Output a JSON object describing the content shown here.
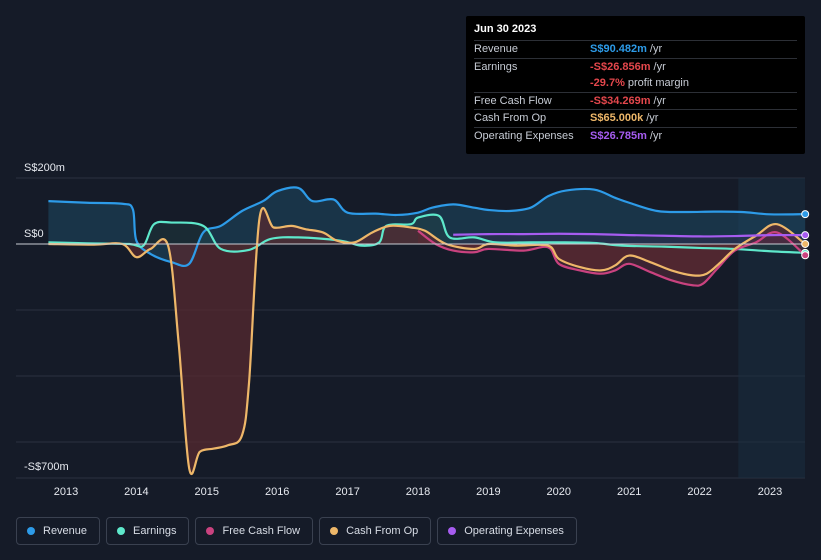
{
  "chart_data": {
    "type": "line",
    "title": "",
    "y_unit": "S$",
    "ylim": [
      -700,
      200
    ],
    "y_tick_labels": [
      {
        "value": 200,
        "label": "S$200m"
      },
      {
        "value": 0,
        "label": "S$0"
      },
      {
        "value": -700,
        "label": "-S$700m"
      }
    ],
    "x_tick_labels": [
      "2013",
      "2014",
      "2015",
      "2016",
      "2017",
      "2018",
      "2019",
      "2020",
      "2021",
      "2022",
      "2023"
    ],
    "forecast_start": 2022.55,
    "series": [
      {
        "name": "Revenue",
        "color": "#2d9be8",
        "points": [
          [
            2012.75,
            130
          ],
          [
            2013.3,
            125
          ],
          [
            2013.8,
            122
          ],
          [
            2013.95,
            105
          ],
          [
            2014.0,
            10
          ],
          [
            2014.2,
            -30
          ],
          [
            2014.5,
            -55
          ],
          [
            2014.75,
            -60
          ],
          [
            2014.95,
            35
          ],
          [
            2015.2,
            55
          ],
          [
            2015.5,
            100
          ],
          [
            2015.8,
            130
          ],
          [
            2016.0,
            160
          ],
          [
            2016.3,
            170
          ],
          [
            2016.5,
            130
          ],
          [
            2016.8,
            135
          ],
          [
            2017.0,
            95
          ],
          [
            2017.4,
            92
          ],
          [
            2017.7,
            88
          ],
          [
            2018.0,
            95
          ],
          [
            2018.2,
            110
          ],
          [
            2018.5,
            120
          ],
          [
            2018.8,
            110
          ],
          [
            2019.0,
            103
          ],
          [
            2019.3,
            100
          ],
          [
            2019.6,
            110
          ],
          [
            2019.85,
            145
          ],
          [
            2020.1,
            162
          ],
          [
            2020.5,
            165
          ],
          [
            2020.8,
            140
          ],
          [
            2021.0,
            125
          ],
          [
            2021.4,
            100
          ],
          [
            2021.8,
            97
          ],
          [
            2022.2,
            98
          ],
          [
            2022.6,
            97
          ],
          [
            2023.0,
            90
          ],
          [
            2023.5,
            90.5
          ]
        ]
      },
      {
        "name": "Earnings",
        "color": "#5ee8cb",
        "points": [
          [
            2012.75,
            5
          ],
          [
            2013.3,
            2
          ],
          [
            2013.9,
            0
          ],
          [
            2014.1,
            -5
          ],
          [
            2014.25,
            60
          ],
          [
            2014.5,
            65
          ],
          [
            2014.95,
            55
          ],
          [
            2015.2,
            -15
          ],
          [
            2015.6,
            -18
          ],
          [
            2015.9,
            15
          ],
          [
            2016.3,
            20
          ],
          [
            2016.9,
            10
          ],
          [
            2017.2,
            -5
          ],
          [
            2017.45,
            5
          ],
          [
            2017.55,
            55
          ],
          [
            2017.9,
            60
          ],
          [
            2018.0,
            80
          ],
          [
            2018.3,
            85
          ],
          [
            2018.45,
            20
          ],
          [
            2018.8,
            20
          ],
          [
            2019.1,
            5
          ],
          [
            2019.6,
            5
          ],
          [
            2020.0,
            5
          ],
          [
            2020.5,
            3
          ],
          [
            2020.9,
            -5
          ],
          [
            2021.5,
            -8
          ],
          [
            2022.0,
            -12
          ],
          [
            2022.5,
            -15
          ],
          [
            2023.0,
            -22
          ],
          [
            2023.5,
            -26.856
          ]
        ]
      },
      {
        "name": "Free Cash Flow",
        "color": "#c9427f",
        "points": [
          [
            2018.0,
            40
          ],
          [
            2018.25,
            0
          ],
          [
            2018.5,
            -20
          ],
          [
            2018.8,
            -25
          ],
          [
            2019.0,
            -15
          ],
          [
            2019.5,
            -20
          ],
          [
            2019.85,
            -10
          ],
          [
            2020.0,
            -60
          ],
          [
            2020.3,
            -80
          ],
          [
            2020.6,
            -90
          ],
          [
            2020.8,
            -80
          ],
          [
            2021.0,
            -60
          ],
          [
            2021.3,
            -85
          ],
          [
            2021.6,
            -110
          ],
          [
            2021.9,
            -125
          ],
          [
            2022.05,
            -120
          ],
          [
            2022.25,
            -75
          ],
          [
            2022.5,
            -20
          ],
          [
            2022.8,
            5
          ],
          [
            2023.1,
            35
          ],
          [
            2023.5,
            -34.269
          ]
        ]
      },
      {
        "name": "Cash From Op",
        "color": "#eeb769",
        "points": [
          [
            2012.75,
            0
          ],
          [
            2013.4,
            -2
          ],
          [
            2013.8,
            0
          ],
          [
            2014.0,
            -40
          ],
          [
            2014.2,
            -15
          ],
          [
            2014.45,
            -5
          ],
          [
            2014.6,
            -300
          ],
          [
            2014.75,
            -680
          ],
          [
            2014.9,
            -630
          ],
          [
            2015.1,
            -620
          ],
          [
            2015.3,
            -610
          ],
          [
            2015.5,
            -580
          ],
          [
            2015.6,
            -420
          ],
          [
            2015.75,
            80
          ],
          [
            2015.95,
            50
          ],
          [
            2016.2,
            55
          ],
          [
            2016.4,
            45
          ],
          [
            2016.65,
            35
          ],
          [
            2016.85,
            10
          ],
          [
            2017.1,
            5
          ],
          [
            2017.35,
            35
          ],
          [
            2017.6,
            55
          ],
          [
            2017.9,
            50
          ],
          [
            2018.1,
            40
          ],
          [
            2018.4,
            0
          ],
          [
            2018.8,
            -15
          ],
          [
            2019.0,
            0
          ],
          [
            2019.4,
            -5
          ],
          [
            2019.85,
            -5
          ],
          [
            2020.0,
            -45
          ],
          [
            2020.3,
            -70
          ],
          [
            2020.6,
            -80
          ],
          [
            2020.8,
            -65
          ],
          [
            2021.0,
            -35
          ],
          [
            2021.3,
            -55
          ],
          [
            2021.6,
            -80
          ],
          [
            2021.9,
            -95
          ],
          [
            2022.1,
            -90
          ],
          [
            2022.3,
            -55
          ],
          [
            2022.5,
            -15
          ],
          [
            2022.8,
            25
          ],
          [
            2023.1,
            60
          ],
          [
            2023.5,
            0.065
          ]
        ]
      },
      {
        "name": "Operating Expenses",
        "color": "#a65cf0",
        "points": [
          [
            2018.5,
            28
          ],
          [
            2019.0,
            30
          ],
          [
            2019.5,
            30
          ],
          [
            2020.0,
            31
          ],
          [
            2020.5,
            30
          ],
          [
            2021.0,
            27
          ],
          [
            2021.5,
            25
          ],
          [
            2022.0,
            23
          ],
          [
            2022.5,
            24
          ],
          [
            2023.0,
            27
          ],
          [
            2023.5,
            26.785
          ]
        ]
      }
    ]
  },
  "tooltip": {
    "date": "Jun 30 2023",
    "rows": [
      {
        "label": "Revenue",
        "value": "S$90.482m",
        "unit": "/yr",
        "color": "#2d9be8"
      },
      {
        "label": "Earnings",
        "value": "-S$26.856m",
        "unit": "/yr",
        "color": "#e4474c"
      },
      {
        "label": "",
        "value": "-29.7%",
        "unit": "profit margin",
        "color": "#e4474c"
      },
      {
        "label": "Free Cash Flow",
        "value": "-S$34.269m",
        "unit": "/yr",
        "color": "#e4474c"
      },
      {
        "label": "Cash From Op",
        "value": "S$65.000k",
        "unit": "/yr",
        "color": "#eeb769"
      },
      {
        "label": "Operating Expenses",
        "value": "S$26.785m",
        "unit": "/yr",
        "color": "#a65cf0"
      }
    ]
  },
  "legend": [
    {
      "label": "Revenue",
      "color": "#2d9be8"
    },
    {
      "label": "Earnings",
      "color": "#5ee8cb"
    },
    {
      "label": "Free Cash Flow",
      "color": "#c9427f"
    },
    {
      "label": "Cash From Op",
      "color": "#eeb769"
    },
    {
      "label": "Operating Expenses",
      "color": "#a65cf0"
    }
  ]
}
